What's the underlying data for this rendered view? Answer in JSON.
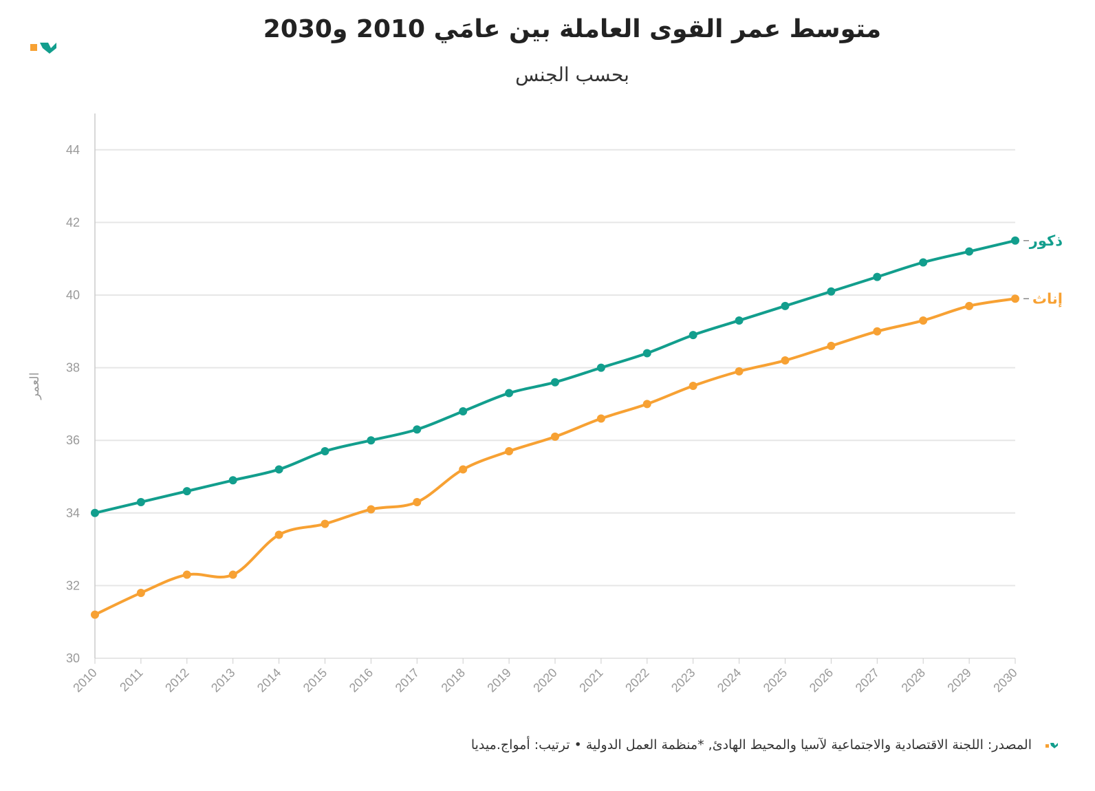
{
  "chart_data": {
    "type": "line",
    "title": "متوسط عمر القوى العاملة بين عامَي 2010 و2030",
    "subtitle": "بحسب الجنس",
    "ylabel": "العمر",
    "source": "المصدر: اللجنة الاقتصادية والاجتماعية لآسيا والمحيط الهادئ, *منظمة العمل الدولية • ترتيب: أمواج.ميديا",
    "x": [
      2010,
      2011,
      2012,
      2013,
      2014,
      2015,
      2016,
      2017,
      2018,
      2019,
      2020,
      2021,
      2022,
      2023,
      2024,
      2025,
      2026,
      2027,
      2028,
      2029,
      2030
    ],
    "xlim": [
      2010,
      2030
    ],
    "xticks": [
      2010,
      2011,
      2012,
      2013,
      2014,
      2015,
      2016,
      2017,
      2018,
      2019,
      2020,
      2021,
      2022,
      2023,
      2024,
      2025,
      2026,
      2027,
      2028,
      2029,
      2030
    ],
    "ylim": [
      30,
      45
    ],
    "yticks": [
      30,
      32,
      34,
      36,
      38,
      40,
      42,
      44
    ],
    "grid": true,
    "series": [
      {
        "name": "ذكور",
        "color": "#129e8d",
        "values": [
          34,
          34.3,
          34.6,
          34.9,
          35.2,
          35.7,
          36.0,
          36.3,
          36.8,
          37.3,
          37.6,
          38.0,
          38.4,
          38.9,
          39.3,
          39.7,
          40.1,
          40.5,
          40.9,
          41.2,
          41.5
        ]
      },
      {
        "name": "إناث",
        "color": "#f7a133",
        "values": [
          31.2,
          31.8,
          32.3,
          32.3,
          33.4,
          33.7,
          34.1,
          34.3,
          35.2,
          35.7,
          36.1,
          36.6,
          37.0,
          37.5,
          37.9,
          38.2,
          38.6,
          39.0,
          39.3,
          39.7,
          39.9
        ]
      }
    ]
  }
}
